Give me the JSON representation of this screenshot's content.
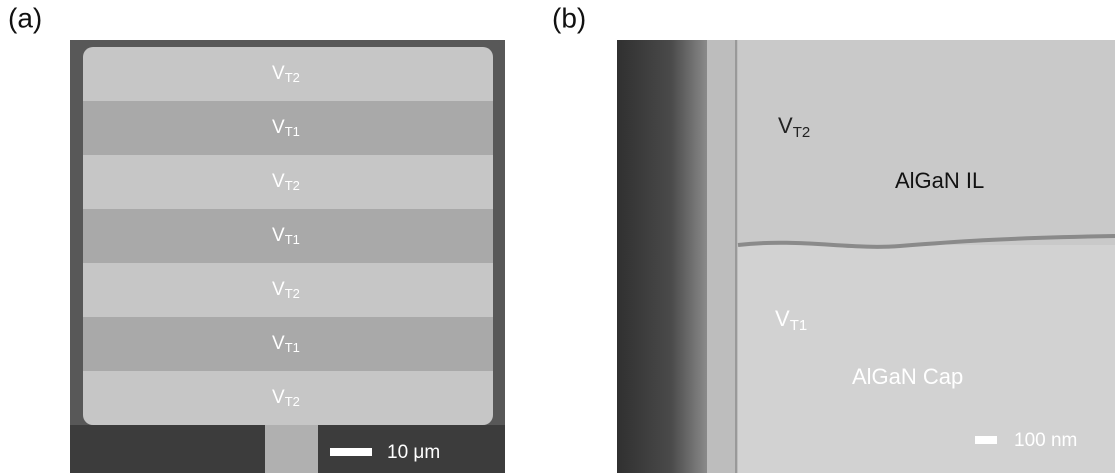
{
  "panel_a": {
    "label": "(a)",
    "stripes": [
      {
        "main": "V",
        "sub": "T2"
      },
      {
        "main": "V",
        "sub": "T1"
      },
      {
        "main": "V",
        "sub": "T2"
      },
      {
        "main": "V",
        "sub": "T1"
      },
      {
        "main": "V",
        "sub": "T2"
      },
      {
        "main": "V",
        "sub": "T1"
      },
      {
        "main": "V",
        "sub": "T2"
      }
    ],
    "scale_bar": "10 μm"
  },
  "panel_b": {
    "label": "(b)",
    "upper": {
      "main": "V",
      "sub": "T2",
      "layer": "AlGaN IL"
    },
    "lower": {
      "main": "V",
      "sub": "T1",
      "layer": "AlGaN Cap"
    },
    "scale_bar": "100 nm"
  }
}
